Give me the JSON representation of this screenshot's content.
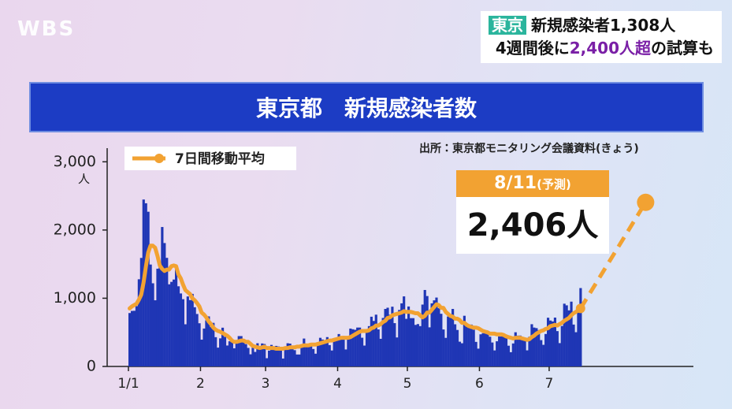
{
  "logo": "WBS",
  "caption": {
    "tag": "東京",
    "line1": "新規感染者1,308人",
    "line2_a": "4週間後に",
    "line2_b": "2,400人超",
    "line2_c": "の試算も"
  },
  "chart_data": {
    "type": "bar",
    "title": "東京都　新規感染者数",
    "source": "出所：東京都モニタリング会議資料(きょう)",
    "y_unit": "人",
    "projection_note": "(予測)",
    "ylim": [
      0,
      3200
    ],
    "yticks": [
      0,
      {
        "value": 1000,
        "label": "1,000"
      },
      {
        "value": 2000,
        "label": "2,000"
      },
      {
        "value": 3000,
        "label": "3,000"
      }
    ],
    "grid": false,
    "legend": "top-left",
    "categories": [
      "1/1",
      null,
      null,
      null,
      null,
      null,
      null,
      null,
      null,
      null,
      null,
      null,
      null,
      null,
      null,
      null,
      null,
      null,
      null,
      null,
      null,
      null,
      null,
      null,
      null,
      null,
      null,
      null,
      null,
      null,
      null,
      "2",
      null,
      null,
      null,
      null,
      null,
      null,
      null,
      null,
      null,
      null,
      null,
      null,
      null,
      null,
      null,
      null,
      null,
      null,
      null,
      null,
      null,
      null,
      null,
      null,
      null,
      null,
      null,
      "3",
      null,
      null,
      null,
      null,
      null,
      null,
      null,
      null,
      null,
      null,
      null,
      null,
      null,
      null,
      null,
      null,
      null,
      null,
      null,
      null,
      null,
      null,
      null,
      null,
      null,
      null,
      null,
      null,
      null,
      null,
      "4",
      null,
      null,
      null,
      null,
      null,
      null,
      null,
      null,
      null,
      null,
      null,
      null,
      null,
      null,
      null,
      null,
      null,
      null,
      null,
      null,
      null,
      null,
      null,
      null,
      null,
      null,
      null,
      null,
      null,
      "5",
      null,
      null,
      null,
      null,
      null,
      null,
      null,
      null,
      null,
      null,
      null,
      null,
      null,
      null,
      null,
      null,
      null,
      null,
      null,
      null,
      null,
      null,
      null,
      null,
      null,
      null,
      null,
      null,
      null,
      null,
      "6",
      null,
      null,
      null,
      null,
      null,
      null,
      null,
      null,
      null,
      null,
      null,
      null,
      null,
      null,
      null,
      null,
      null,
      null,
      null,
      null,
      null,
      null,
      null,
      null,
      null,
      null,
      null,
      null,
      null,
      "7",
      null,
      null,
      null,
      null,
      null,
      null,
      null,
      null,
      null,
      null,
      null,
      null,
      null,
      null,
      null,
      null,
      null,
      null,
      null,
      null,
      null,
      null,
      null,
      null,
      null,
      null,
      null,
      null,
      null,
      null,
      null,
      null,
      null,
      null,
      null,
      null,
      null,
      null,
      null,
      null,
      "8/11"
    ],
    "series": [
      {
        "color": "#1f36b5",
        "type": "bar",
        "values": [
          783,
          814,
          816,
          884,
          1278,
          1591,
          2447,
          2392,
          2268,
          1494,
          1219,
          970,
          1433,
          1502,
          2044,
          1809,
          1592,
          1204,
          1240,
          1274,
          1471,
          1175,
          1070,
          986,
          618,
          1026,
          973,
          1064,
          868,
          769,
          633,
          393,
          556,
          676,
          734,
          577,
          639,
          429,
          276,
          412,
          568,
          434,
          307,
          369,
          371,
          266,
          378,
          445,
          445,
          353,
          327,
          272,
          178,
          275,
          213,
          340,
          270,
          337,
          329,
          121,
          232,
          316,
          279,
          301,
          293,
          237,
          116,
          290,
          340,
          335,
          304,
          239,
          175,
          175,
          300,
          409,
          323,
          303,
          342,
          256,
          187,
          337,
          420,
          394,
          376,
          430,
          313,
          234,
          364,
          414,
          475,
          440,
          446,
          249,
          399,
          555,
          545,
          537,
          570,
          570,
          421,
          306,
          510,
          591,
          729,
          667,
          759,
          543,
          405,
          711,
          843,
          861,
          759,
          876,
          635,
          425,
          828,
          925,
          1027,
          698,
          879,
          708,
          708,
          609,
          621,
          591,
          907,
          1121,
          1032,
          573,
          925,
          969,
          1010,
          854,
          772,
          542,
          419,
          732,
          766,
          843,
          618,
          535,
          363,
          340,
          743,
          597,
          614,
          614,
          539,
          360,
          261,
          471,
          487,
          508,
          472,
          436,
          351,
          235,
          369,
          440,
          439,
          435,
          467,
          304,
          209,
          337,
          501,
          452,
          453,
          388,
          376,
          236,
          435,
          619,
          570,
          562,
          534,
          386,
          317,
          476,
          714,
          673,
          660,
          716,
          518,
          342,
          593,
          920,
          896,
          822,
          950,
          614,
          502,
          830,
          1149,
          null,
          null,
          null,
          null,
          null,
          null,
          null,
          null,
          null,
          null,
          null,
          null,
          null,
          null,
          null,
          null,
          null,
          null,
          null,
          null,
          null,
          null,
          null,
          null,
          null,
          null,
          null,
          null
        ]
      },
      {
        "name": "7日間移動平均",
        "color": "#f2a232",
        "type": "line",
        "values": [
          850,
          880,
          900,
          920,
          980,
          1050,
          1230,
          1460,
          1670,
          1770,
          1770,
          1740,
          1620,
          1480,
          1430,
          1400,
          1420,
          1420,
          1470,
          1480,
          1470,
          1350,
          1290,
          1200,
          1120,
          1090,
          1060,
          1000,
          970,
          930,
          880,
          790,
          760,
          720,
          660,
          620,
          570,
          540,
          520,
          510,
          490,
          470,
          450,
          420,
          380,
          360,
          360,
          370,
          380,
          380,
          360,
          360,
          330,
          300,
          290,
          280,
          270,
          280,
          290,
          270,
          270,
          270,
          270,
          260,
          260,
          260,
          260,
          270,
          270,
          280,
          280,
          280,
          290,
          290,
          300,
          310,
          310,
          310,
          320,
          320,
          320,
          330,
          340,
          350,
          360,
          370,
          380,
          380,
          390,
          400,
          410,
          420,
          420,
          420,
          420,
          430,
          450,
          470,
          490,
          510,
          520,
          520,
          520,
          530,
          560,
          570,
          600,
          600,
          620,
          650,
          670,
          710,
          720,
          750,
          760,
          770,
          780,
          790,
          810,
          800,
          800,
          800,
          790,
          780,
          780,
          750,
          720,
          740,
          790,
          790,
          830,
          870,
          910,
          900,
          860,
          860,
          800,
          770,
          740,
          730,
          700,
          700,
          680,
          640,
          640,
          610,
          590,
          580,
          570,
          570,
          560,
          540,
          520,
          510,
          500,
          480,
          480,
          480,
          470,
          470,
          470,
          460,
          440,
          430,
          420,
          410,
          420,
          420,
          420,
          410,
          400,
          390,
          400,
          430,
          450,
          480,
          500,
          520,
          530,
          550,
          560,
          590,
          600,
          610,
          600,
          620,
          640,
          670,
          690,
          710,
          750,
          780,
          800,
          820,
          850,
          null,
          null,
          null,
          null,
          null,
          null,
          null,
          null,
          null,
          null,
          null,
          null,
          null,
          null,
          null,
          null,
          null,
          null,
          null,
          null,
          null,
          null,
          null,
          null,
          null,
          null,
          null,
          null
        ]
      },
      {
        "color": "#f2a232",
        "type": "projection",
        "values": [
          null,
          null,
          null,
          null,
          null,
          null,
          null,
          null,
          null,
          null,
          null,
          null,
          null,
          null,
          null,
          null,
          null,
          null,
          null,
          null,
          null,
          null,
          null,
          null,
          null,
          null,
          null,
          null,
          null,
          null,
          null,
          null,
          null,
          null,
          null,
          null,
          null,
          null,
          null,
          null,
          null,
          null,
          null,
          null,
          null,
          null,
          null,
          null,
          null,
          null,
          null,
          null,
          null,
          null,
          null,
          null,
          null,
          null,
          null,
          null,
          null,
          null,
          null,
          null,
          null,
          null,
          null,
          null,
          null,
          null,
          null,
          null,
          null,
          null,
          null,
          null,
          null,
          null,
          null,
          null,
          null,
          null,
          null,
          null,
          null,
          null,
          null,
          null,
          null,
          null,
          null,
          null,
          null,
          null,
          null,
          null,
          null,
          null,
          null,
          null,
          null,
          null,
          null,
          null,
          null,
          null,
          null,
          null,
          null,
          null,
          null,
          null,
          null,
          null,
          null,
          null,
          null,
          null,
          null,
          null,
          null,
          null,
          null,
          null,
          null,
          null,
          null,
          null,
          null,
          null,
          null,
          null,
          null,
          null,
          null,
          null,
          null,
          null,
          null,
          null,
          null,
          null,
          null,
          null,
          null,
          null,
          null,
          null,
          null,
          null,
          null,
          null,
          null,
          null,
          null,
          null,
          null,
          null,
          null,
          null,
          null,
          null,
          null,
          null,
          null,
          null,
          null,
          null,
          null,
          null,
          null,
          null,
          null,
          null,
          null,
          null,
          null,
          null,
          null,
          null,
          null,
          null,
          null,
          null,
          null,
          null,
          null,
          null,
          null,
          null,
          null,
          null,
          null,
          null,
          null,
          null,
          null,
          null,
          null,
          null,
          null,
          null,
          null,
          null,
          null,
          null,
          null,
          null,
          null,
          null,
          null,
          null,
          null,
          null,
          null,
          null,
          null,
          null,
          null,
          null,
          null,
          null,
          2406
        ],
        "value_labels": [
          null,
          null,
          null,
          null,
          null,
          null,
          null,
          null,
          null,
          null,
          null,
          null,
          null,
          null,
          null,
          null,
          null,
          null,
          null,
          null,
          null,
          null,
          null,
          null,
          null,
          null,
          null,
          null,
          null,
          null,
          null,
          null,
          null,
          null,
          null,
          null,
          null,
          null,
          null,
          null,
          null,
          null,
          null,
          null,
          null,
          null,
          null,
          null,
          null,
          null,
          null,
          null,
          null,
          null,
          null,
          null,
          null,
          null,
          null,
          null,
          null,
          null,
          null,
          null,
          null,
          null,
          null,
          null,
          null,
          null,
          null,
          null,
          null,
          null,
          null,
          null,
          null,
          null,
          null,
          null,
          null,
          null,
          null,
          null,
          null,
          null,
          null,
          null,
          null,
          null,
          null,
          null,
          null,
          null,
          null,
          null,
          null,
          null,
          null,
          null,
          null,
          null,
          null,
          null,
          null,
          null,
          null,
          null,
          null,
          null,
          null,
          null,
          null,
          null,
          null,
          null,
          null,
          null,
          null,
          null,
          null,
          null,
          null,
          null,
          null,
          null,
          null,
          null,
          null,
          null,
          null,
          null,
          null,
          null,
          null,
          null,
          null,
          null,
          null,
          null,
          null,
          null,
          null,
          null,
          null,
          null,
          null,
          null,
          null,
          null,
          null,
          null,
          null,
          null,
          null,
          null,
          null,
          null,
          null,
          null,
          null,
          null,
          null,
          null,
          null,
          null,
          null,
          null,
          null,
          null,
          null,
          null,
          null,
          null,
          null,
          null,
          null,
          null,
          null,
          null,
          null,
          null,
          null,
          null,
          null,
          null,
          null,
          null,
          null,
          null,
          null,
          null,
          null,
          null,
          null,
          null,
          null,
          null,
          null,
          null,
          null,
          null,
          null,
          null,
          null,
          null,
          null,
          null,
          null,
          null,
          null,
          null,
          null,
          null,
          null,
          null,
          null,
          null,
          null,
          null,
          null,
          null,
          "2,406人"
        ]
      }
    ]
  }
}
